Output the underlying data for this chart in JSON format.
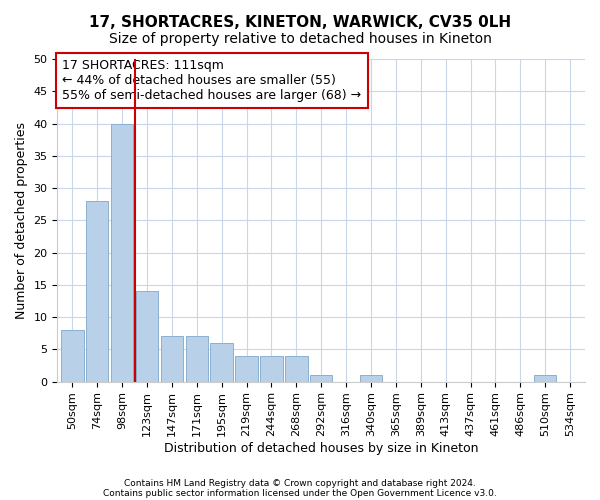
{
  "title1": "17, SHORTACRES, KINETON, WARWICK, CV35 0LH",
  "title2": "Size of property relative to detached houses in Kineton",
  "xlabel": "Distribution of detached houses by size in Kineton",
  "ylabel": "Number of detached properties",
  "categories": [
    "50sqm",
    "74sqm",
    "98sqm",
    "123sqm",
    "147sqm",
    "171sqm",
    "195sqm",
    "219sqm",
    "244sqm",
    "268sqm",
    "292sqm",
    "316sqm",
    "340sqm",
    "365sqm",
    "389sqm",
    "413sqm",
    "437sqm",
    "461sqm",
    "486sqm",
    "510sqm",
    "534sqm"
  ],
  "values": [
    8,
    28,
    40,
    14,
    7,
    7,
    6,
    4,
    4,
    4,
    1,
    0,
    1,
    0,
    0,
    0,
    0,
    0,
    0,
    1,
    0
  ],
  "bar_color": "#b8d0e8",
  "bar_edge_color": "#8ab0d0",
  "vline_x": 2.5,
  "vline_color": "#cc0000",
  "annotation_text": "17 SHORTACRES: 111sqm\n← 44% of detached houses are smaller (55)\n55% of semi-detached houses are larger (68) →",
  "annotation_box_color": "#ffffff",
  "annotation_box_edge": "#cc0000",
  "ylim": [
    0,
    50
  ],
  "yticks": [
    0,
    5,
    10,
    15,
    20,
    25,
    30,
    35,
    40,
    45,
    50
  ],
  "footer1": "Contains HM Land Registry data © Crown copyright and database right 2024.",
  "footer2": "Contains public sector information licensed under the Open Government Licence v3.0.",
  "bg_color": "#ffffff",
  "plot_bg_color": "#ffffff",
  "grid_color": "#c8d8e8",
  "title_fontsize": 11,
  "subtitle_fontsize": 10,
  "tick_fontsize": 8,
  "label_fontsize": 9,
  "annotation_fontsize": 9
}
